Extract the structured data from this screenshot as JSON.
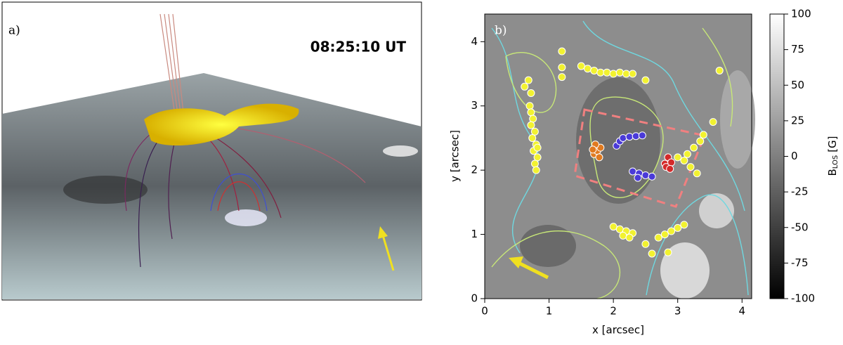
{
  "chart_data": [
    {
      "type": "image",
      "label": "a)",
      "annotation": "08:25:10 UT"
    },
    {
      "type": "scatter",
      "label": "b)",
      "xlabel": "x [arcsec]",
      "ylabel": "y [arcsec]",
      "xlim": [
        0,
        4.15
      ],
      "ylim": [
        0,
        4.43
      ],
      "xticks": [
        0,
        1,
        2,
        3,
        4
      ],
      "yticks": [
        0,
        1,
        2,
        3,
        4
      ],
      "series": [
        {
          "color": "#f2f230",
          "x": [
            0.62,
            0.68,
            0.72,
            0.7,
            0.72,
            0.75,
            0.72,
            0.78,
            0.74,
            0.8,
            0.76,
            0.82,
            0.78,
            0.8,
            0.82,
            1.5,
            1.6,
            1.7,
            1.8,
            1.9,
            2.0,
            2.1,
            2.2,
            2.3,
            1.2,
            1.2,
            1.2,
            2.5,
            3.65,
            3.55,
            3.0,
            3.1,
            3.2,
            3.3,
            3.35,
            3.25,
            3.15,
            3.4,
            2.0,
            2.1,
            2.2,
            2.3,
            2.15,
            2.25,
            2.7,
            2.8,
            2.9,
            3.0,
            3.1,
            2.6,
            2.85,
            2.5
          ],
          "values": [
            3.3,
            3.4,
            3.2,
            3.0,
            2.9,
            2.8,
            2.7,
            2.6,
            2.5,
            2.4,
            2.3,
            2.2,
            2.1,
            2.0,
            2.35,
            3.62,
            3.58,
            3.55,
            3.52,
            3.52,
            3.5,
            3.52,
            3.5,
            3.5,
            3.85,
            3.6,
            3.45,
            3.4,
            3.55,
            2.75,
            2.2,
            2.15,
            2.05,
            1.95,
            2.45,
            2.35,
            2.25,
            2.55,
            1.12,
            1.08,
            1.05,
            1.02,
            0.98,
            0.95,
            0.95,
            1.0,
            1.05,
            1.1,
            1.15,
            0.7,
            0.72,
            0.85
          ]
        },
        {
          "color": "#e07a20",
          "x": [
            1.7,
            1.75,
            1.8,
            1.72,
            1.78,
            1.68
          ],
          "values": [
            2.25,
            2.3,
            2.35,
            2.4,
            2.2,
            2.32
          ]
        },
        {
          "color": "#4a3ad8",
          "x": [
            2.05,
            2.1,
            2.15,
            2.25,
            2.35,
            2.45,
            2.3,
            2.4,
            2.5,
            2.6,
            2.38
          ],
          "values": [
            2.38,
            2.45,
            2.5,
            2.52,
            2.53,
            2.54,
            1.98,
            1.95,
            1.92,
            1.9,
            1.88
          ]
        },
        {
          "color": "#d42a2a",
          "x": [
            2.8,
            2.85,
            2.9,
            2.82,
            2.88
          ],
          "values": [
            2.1,
            2.2,
            2.12,
            2.05,
            2.02
          ]
        }
      ],
      "colorbar": {
        "lim": [
          -100,
          100
        ],
        "ticks": [
          100,
          75,
          50,
          25,
          0,
          -25,
          -50,
          -75,
          -100
        ],
        "label": "B",
        "label_sub": "LOS",
        "label_unit": "[G]"
      }
    }
  ]
}
